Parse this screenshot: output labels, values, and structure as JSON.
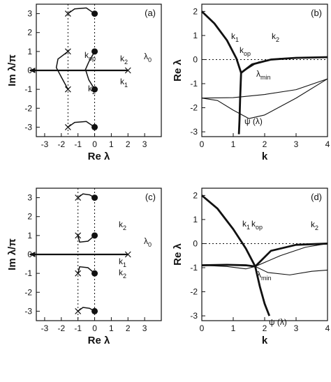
{
  "chart_data": [
    {
      "panel": "(a)",
      "type": "scatter",
      "xlabel": "Re λ",
      "ylabel": "Im λ/π",
      "xlim": [
        -3.5,
        4
      ],
      "ylim": [
        -3.5,
        3.5
      ],
      "xticks": [
        -3,
        -2,
        -1,
        0,
        1,
        2,
        3
      ],
      "yticks": [
        -3,
        -2,
        -1,
        0,
        1,
        2,
        3
      ],
      "crosses": [
        [
          -1.6,
          3
        ],
        [
          -1.6,
          1
        ],
        [
          -1.6,
          -1
        ],
        [
          -1.6,
          -3
        ],
        [
          2,
          0
        ]
      ],
      "dots": [
        [
          0,
          3
        ],
        [
          0,
          1
        ],
        [
          0,
          -1
        ],
        [
          0,
          -3
        ]
      ],
      "dotted_vertical_lines": [
        -1.6,
        0
      ],
      "annotations": [
        "k_op",
        "k_2",
        "k_1",
        "k_2",
        "λ_0"
      ],
      "curves": [
        [
          [
            -1.6,
            3
          ],
          [
            -1.2,
            3.25
          ],
          [
            -0.5,
            3.3
          ],
          [
            0,
            3
          ]
        ],
        [
          [
            -1.6,
            -3
          ],
          [
            -1.2,
            -2.75
          ],
          [
            -0.5,
            -2.7
          ],
          [
            0,
            -3
          ]
        ],
        [
          [
            -1.6,
            1
          ],
          [
            -2.2,
            0.6
          ],
          [
            -2.3,
            0.15
          ],
          [
            -2,
            -0.35
          ],
          [
            -1.6,
            -1
          ]
        ],
        [
          [
            0,
            1
          ],
          [
            -0.35,
            0.45
          ],
          [
            -0.55,
            0.05
          ],
          [
            -0.35,
            -0.5
          ],
          [
            0,
            -1
          ]
        ],
        [
          [
            -3.9,
            0
          ],
          [
            2,
            0
          ]
        ]
      ]
    },
    {
      "panel": "(b)",
      "type": "line",
      "xlabel": "k",
      "ylabel": "Re λ",
      "xlim": [
        0,
        4
      ],
      "ylim": [
        -3.2,
        2.3
      ],
      "xticks": [
        0,
        1,
        2,
        3,
        4
      ],
      "yticks": [
        -3,
        -2,
        -1,
        0,
        1,
        2
      ],
      "annotations": [
        "k_1",
        "k_op",
        "k_2",
        "λ_min",
        "ψ (λ)"
      ],
      "series": [
        {
          "x": [
            0,
            0.4,
            0.8,
            1.1,
            1.25
          ],
          "y": [
            2,
            1.5,
            0.8,
            0.05,
            -0.55
          ],
          "thick": true
        },
        {
          "x": [
            1.25,
            1.22,
            1.2,
            1.18
          ],
          "y": [
            -0.55,
            -1.6,
            -2.5,
            -3.1
          ],
          "thick": true
        },
        {
          "x": [
            1.25,
            1.6,
            2.2,
            3,
            4
          ],
          "y": [
            -0.55,
            -0.2,
            0,
            0.07,
            0.1
          ],
          "thick": true
        },
        {
          "x": [
            1.25,
            1.8,
            2.5,
            3.3,
            4
          ],
          "y": [
            -0.55,
            -0.1,
            0.05,
            0.08,
            0.1
          ],
          "thick": false
        },
        {
          "x": [
            0,
            0.5,
            1,
            1.5,
            2,
            3,
            4
          ],
          "y": [
            -1.6,
            -1.7,
            -2.1,
            -2.45,
            -2.3,
            -1.6,
            -0.8
          ],
          "thick": false
        },
        {
          "x": [
            0,
            1,
            2,
            3,
            4
          ],
          "y": [
            -1.6,
            -1.58,
            -1.45,
            -1.25,
            -0.8
          ],
          "thick": false
        }
      ]
    },
    {
      "panel": "(c)",
      "type": "scatter",
      "xlabel": "Re λ",
      "ylabel": "Im λ/π",
      "xlim": [
        -3.5,
        4
      ],
      "ylim": [
        -3.5,
        3.5
      ],
      "xticks": [
        -3,
        -2,
        -1,
        0,
        1,
        2,
        3
      ],
      "yticks": [
        -3,
        -2,
        -1,
        0,
        1,
        2,
        3
      ],
      "crosses": [
        [
          -1,
          3
        ],
        [
          -1,
          1
        ],
        [
          -1,
          -1
        ],
        [
          -1,
          -3
        ],
        [
          2,
          0
        ]
      ],
      "dots": [
        [
          0,
          3
        ],
        [
          0,
          1
        ],
        [
          0,
          -1
        ],
        [
          0,
          -3
        ]
      ],
      "dotted_vertical_lines": [
        -1,
        0
      ],
      "annotations": [
        "k_2",
        "k_1",
        "k_2",
        "λ_0"
      ],
      "curves": [
        [
          [
            -1,
            3
          ],
          [
            -0.7,
            3.2
          ],
          [
            -0.3,
            3.15
          ],
          [
            0,
            3
          ]
        ],
        [
          [
            -1,
            -3
          ],
          [
            -0.7,
            -2.8
          ],
          [
            -0.3,
            -2.85
          ],
          [
            0,
            -3
          ]
        ],
        [
          [
            -1,
            1
          ],
          [
            -0.9,
            0.65
          ],
          [
            -0.4,
            0.7
          ],
          [
            0,
            1
          ]
        ],
        [
          [
            -1,
            -1
          ],
          [
            -0.9,
            -0.65
          ],
          [
            -0.4,
            -0.7
          ],
          [
            0,
            -1
          ]
        ],
        [
          [
            -3.9,
            0
          ],
          [
            2,
            0
          ]
        ]
      ]
    },
    {
      "panel": "(d)",
      "type": "line",
      "xlabel": "k",
      "ylabel": "Re λ",
      "xlim": [
        0,
        4
      ],
      "ylim": [
        -3.2,
        2.3
      ],
      "xticks": [
        0,
        1,
        2,
        3,
        4
      ],
      "yticks": [
        -3,
        -2,
        -1,
        0,
        1,
        2
      ],
      "annotations": [
        "k_1",
        "k_op",
        "k_2",
        "λ_min",
        "ψ (λ)"
      ],
      "series": [
        {
          "x": [
            0,
            0.5,
            1,
            1.4,
            1.7
          ],
          "y": [
            2,
            1.45,
            0.6,
            -0.2,
            -0.95
          ],
          "thick": true
        },
        {
          "x": [
            1.7,
            1.85,
            2,
            2.15
          ],
          "y": [
            -0.95,
            -1.8,
            -2.5,
            -3
          ],
          "thick": true
        },
        {
          "x": [
            1.7,
            2.2,
            3,
            4
          ],
          "y": [
            -0.95,
            -0.3,
            -0.05,
            0
          ],
          "thick": true
        },
        {
          "x": [
            0,
            0.8,
            1.4,
            1.7
          ],
          "y": [
            -0.9,
            -0.88,
            -0.9,
            -0.95
          ],
          "thick": true
        },
        {
          "x": [
            1.7,
            2.5,
            3.3,
            4
          ],
          "y": [
            -0.95,
            -0.5,
            -0.15,
            0
          ],
          "thick": false
        },
        {
          "x": [
            0,
            0.8,
            1.4,
            1.7,
            2.1,
            2.8,
            3.5,
            4
          ],
          "y": [
            -0.9,
            -0.95,
            -1.05,
            -0.95,
            -1.2,
            -1.3,
            -1.15,
            -1.1
          ],
          "thick": false
        }
      ]
    }
  ]
}
